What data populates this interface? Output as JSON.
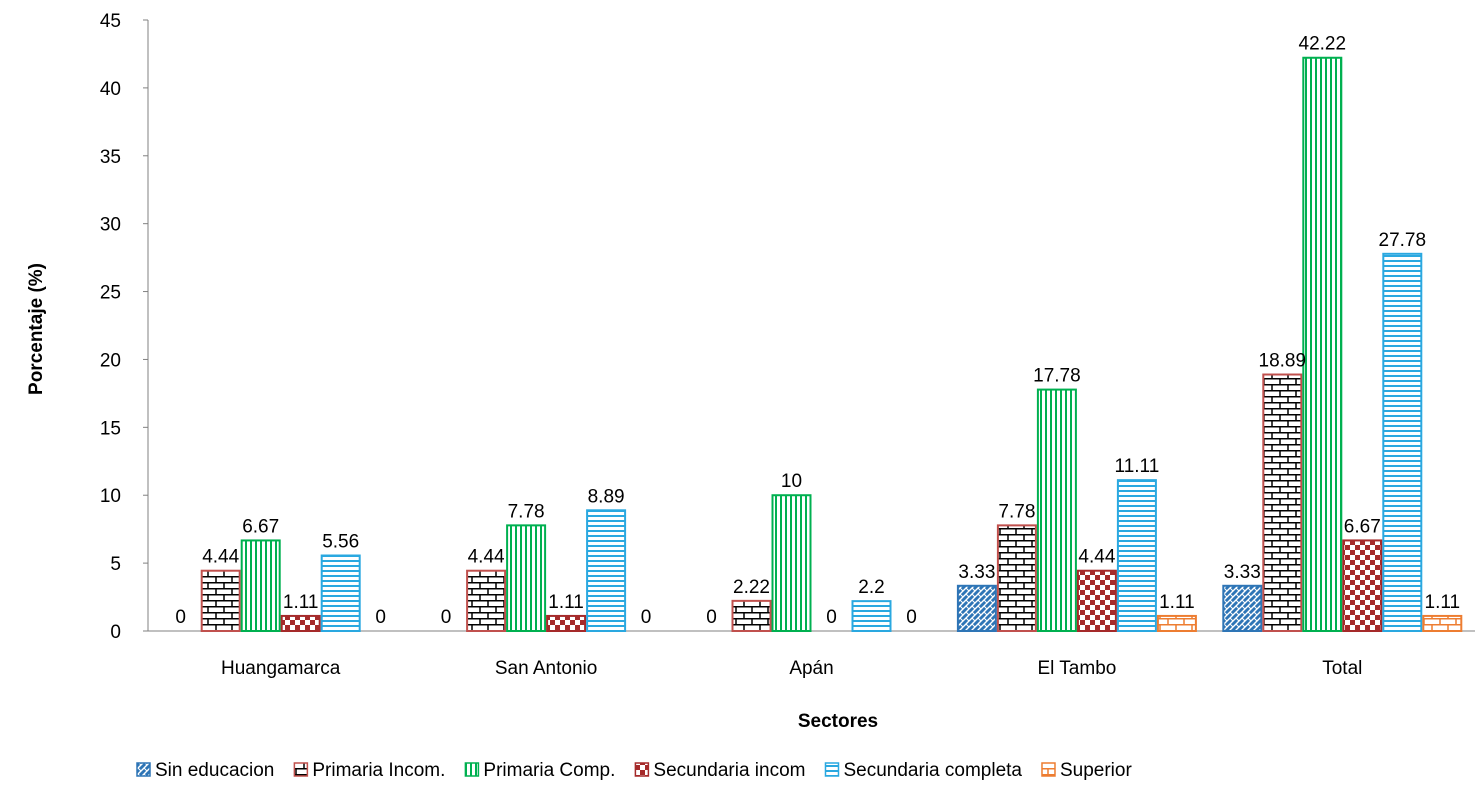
{
  "chart_data": {
    "type": "bar",
    "xlabel": "Sectores",
    "ylabel": "Porcentaje (%)",
    "ylim": [
      0,
      45
    ],
    "yticks": [
      0,
      5,
      10,
      15,
      20,
      25,
      30,
      35,
      40,
      45
    ],
    "grid": false,
    "legend_position": "bottom",
    "categories": [
      "Huangamarca",
      "San Antonio",
      "Apán",
      "El Tambo",
      "Total"
    ],
    "series": [
      {
        "name": "Sin educacion",
        "values": [
          0,
          0,
          0,
          3.33,
          3.33
        ],
        "labels": [
          "0",
          "0",
          "0",
          "3.33",
          "3.33"
        ],
        "color": "#2E75B6",
        "pattern": "weave"
      },
      {
        "name": "Primaria Incom.",
        "values": [
          4.44,
          4.44,
          2.22,
          7.78,
          18.89
        ],
        "labels": [
          "4.44",
          "4.44",
          "2.22",
          "7.78",
          "18.89"
        ],
        "color": "#C0504D",
        "pattern": "brick"
      },
      {
        "name": "Primaria Comp.",
        "values": [
          6.67,
          7.78,
          10,
          17.78,
          42.22
        ],
        "labels": [
          "6.67",
          "7.78",
          "10",
          "17.78",
          "42.22"
        ],
        "color": "#00B050",
        "pattern": "vertical"
      },
      {
        "name": "Secundaria incom",
        "values": [
          1.11,
          1.11,
          0,
          4.44,
          6.67
        ],
        "labels": [
          "1.11",
          "1.11",
          "0",
          "4.44",
          "6.67"
        ],
        "color": "#A52A2A",
        "pattern": "checker"
      },
      {
        "name": "Secundaria completa",
        "values": [
          5.56,
          8.89,
          2.2,
          11.11,
          27.78
        ],
        "labels": [
          "5.56",
          "8.89",
          "2.2",
          "11.11",
          "27.78"
        ],
        "color": "#2AA8E0",
        "pattern": "horizontal"
      },
      {
        "name": "Superior",
        "values": [
          0,
          0,
          0,
          1.11,
          1.11
        ],
        "labels": [
          "0",
          "0",
          "0",
          "1.11",
          "1.11"
        ],
        "color": "#ED7D31",
        "pattern": "brick"
      }
    ]
  }
}
